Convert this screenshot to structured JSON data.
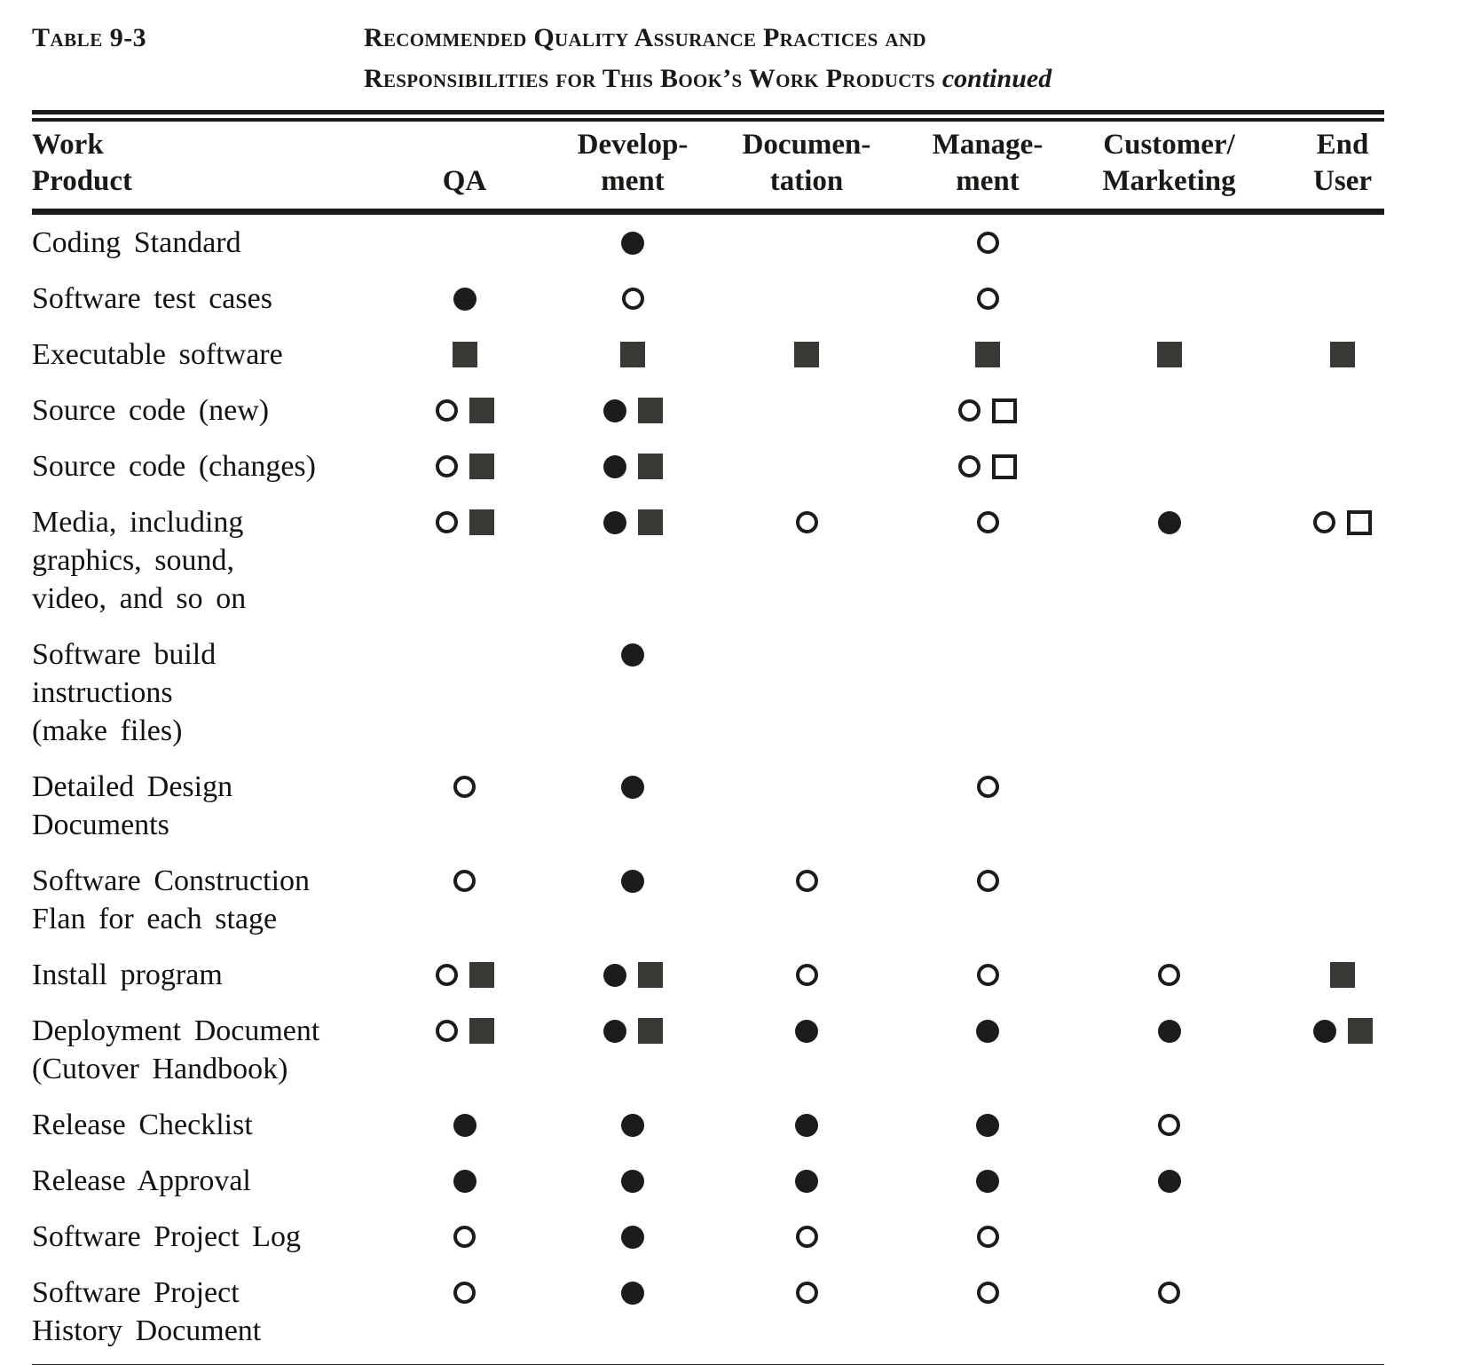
{
  "caption": {
    "label": "Table 9-3",
    "title_line1": "Recommended Quality Assurance Practices and",
    "title_line2": "Responsibilities for This Book’s Work Products",
    "continued": "continued"
  },
  "table": {
    "columns": [
      {
        "id": "work_product",
        "lines": [
          "Work",
          "Product"
        ]
      },
      {
        "id": "qa",
        "lines": [
          "QA"
        ]
      },
      {
        "id": "development",
        "lines": [
          "Develop-",
          "ment"
        ]
      },
      {
        "id": "documentation",
        "lines": [
          "Documen-",
          "tation"
        ]
      },
      {
        "id": "management",
        "lines": [
          "Manage-",
          "ment"
        ]
      },
      {
        "id": "customer_marketing",
        "lines": [
          "Customer/",
          "Marketing"
        ]
      },
      {
        "id": "end_user",
        "lines": [
          "End",
          "User"
        ]
      }
    ],
    "symbol_types": {
      "f-circle": "filled circle",
      "o-circle": "open circle",
      "f-square": "filled square",
      "o-square": "open square"
    },
    "rows": [
      {
        "label_lines": [
          "Coding Standard"
        ],
        "cells": {
          "qa": [],
          "development": [
            "f-circle"
          ],
          "documentation": [],
          "management": [
            "o-circle"
          ],
          "customer_marketing": [],
          "end_user": []
        }
      },
      {
        "label_lines": [
          "Software test cases"
        ],
        "cells": {
          "qa": [
            "f-circle"
          ],
          "development": [
            "o-circle"
          ],
          "documentation": [],
          "management": [
            "o-circle"
          ],
          "customer_marketing": [],
          "end_user": []
        }
      },
      {
        "label_lines": [
          "Executable software"
        ],
        "cells": {
          "qa": [
            "f-square"
          ],
          "development": [
            "f-square"
          ],
          "documentation": [
            "f-square"
          ],
          "management": [
            "f-square"
          ],
          "customer_marketing": [
            "f-square"
          ],
          "end_user": [
            "f-square"
          ]
        }
      },
      {
        "label_lines": [
          "Source code (new)"
        ],
        "cells": {
          "qa": [
            "o-circle",
            "f-square"
          ],
          "development": [
            "f-circle",
            "f-square"
          ],
          "documentation": [],
          "management": [
            "o-circle",
            "o-square"
          ],
          "customer_marketing": [],
          "end_user": []
        }
      },
      {
        "label_lines": [
          "Source code (changes)"
        ],
        "cells": {
          "qa": [
            "o-circle",
            "f-square"
          ],
          "development": [
            "f-circle",
            "f-square"
          ],
          "documentation": [],
          "management": [
            "o-circle",
            "o-square"
          ],
          "customer_marketing": [],
          "end_user": []
        }
      },
      {
        "label_lines": [
          "Media, including",
          "graphics, sound,",
          "video, and so on"
        ],
        "cells": {
          "qa": [
            "o-circle",
            "f-square"
          ],
          "development": [
            "f-circle",
            "f-square"
          ],
          "documentation": [
            "o-circle"
          ],
          "management": [
            "o-circle"
          ],
          "customer_marketing": [
            "f-circle"
          ],
          "end_user": [
            "o-circle",
            "o-square"
          ]
        }
      },
      {
        "label_lines": [
          "Software build",
          "instructions",
          "(make files)"
        ],
        "cells": {
          "qa": [],
          "development": [
            "f-circle"
          ],
          "documentation": [],
          "management": [],
          "customer_marketing": [],
          "end_user": []
        }
      },
      {
        "label_lines": [
          "Detailed Design",
          "Documents"
        ],
        "cells": {
          "qa": [
            "o-circle"
          ],
          "development": [
            "f-circle"
          ],
          "documentation": [],
          "management": [
            "o-circle"
          ],
          "customer_marketing": [],
          "end_user": []
        }
      },
      {
        "label_lines": [
          "Software Construction",
          "Flan for each stage"
        ],
        "cells": {
          "qa": [
            "o-circle"
          ],
          "development": [
            "f-circle"
          ],
          "documentation": [
            "o-circle"
          ],
          "management": [
            "o-circle"
          ],
          "customer_marketing": [],
          "end_user": []
        }
      },
      {
        "label_lines": [
          "Install program"
        ],
        "cells": {
          "qa": [
            "o-circle",
            "f-square"
          ],
          "development": [
            "f-circle",
            "f-square"
          ],
          "documentation": [
            "o-circle"
          ],
          "management": [
            "o-circle"
          ],
          "customer_marketing": [
            "o-circle"
          ],
          "end_user": [
            "f-square"
          ]
        }
      },
      {
        "label_lines": [
          "Deployment Document",
          "(Cutover Handbook)"
        ],
        "cells": {
          "qa": [
            "o-circle",
            "f-square"
          ],
          "development": [
            "f-circle",
            "f-square"
          ],
          "documentation": [
            "f-circle"
          ],
          "management": [
            "f-circle"
          ],
          "customer_marketing": [
            "f-circle"
          ],
          "end_user": [
            "f-circle",
            "f-square"
          ]
        }
      },
      {
        "label_lines": [
          "Release Checklist"
        ],
        "cells": {
          "qa": [
            "f-circle"
          ],
          "development": [
            "f-circle"
          ],
          "documentation": [
            "f-circle"
          ],
          "management": [
            "f-circle"
          ],
          "customer_marketing": [
            "o-circle"
          ],
          "end_user": []
        }
      },
      {
        "label_lines": [
          "Release Approval"
        ],
        "cells": {
          "qa": [
            "f-circle"
          ],
          "development": [
            "f-circle"
          ],
          "documentation": [
            "f-circle"
          ],
          "management": [
            "f-circle"
          ],
          "customer_marketing": [
            "f-circle"
          ],
          "end_user": []
        }
      },
      {
        "label_lines": [
          "Software Project Log"
        ],
        "cells": {
          "qa": [
            "o-circle"
          ],
          "development": [
            "f-circle"
          ],
          "documentation": [
            "o-circle"
          ],
          "management": [
            "o-circle"
          ],
          "customer_marketing": [],
          "end_user": []
        }
      },
      {
        "label_lines": [
          "Software Project",
          "History Document"
        ],
        "cells": {
          "qa": [
            "o-circle"
          ],
          "development": [
            "f-circle"
          ],
          "documentation": [
            "o-circle"
          ],
          "management": [
            "o-circle"
          ],
          "customer_marketing": [
            "o-circle"
          ],
          "end_user": []
        }
      }
    ]
  }
}
